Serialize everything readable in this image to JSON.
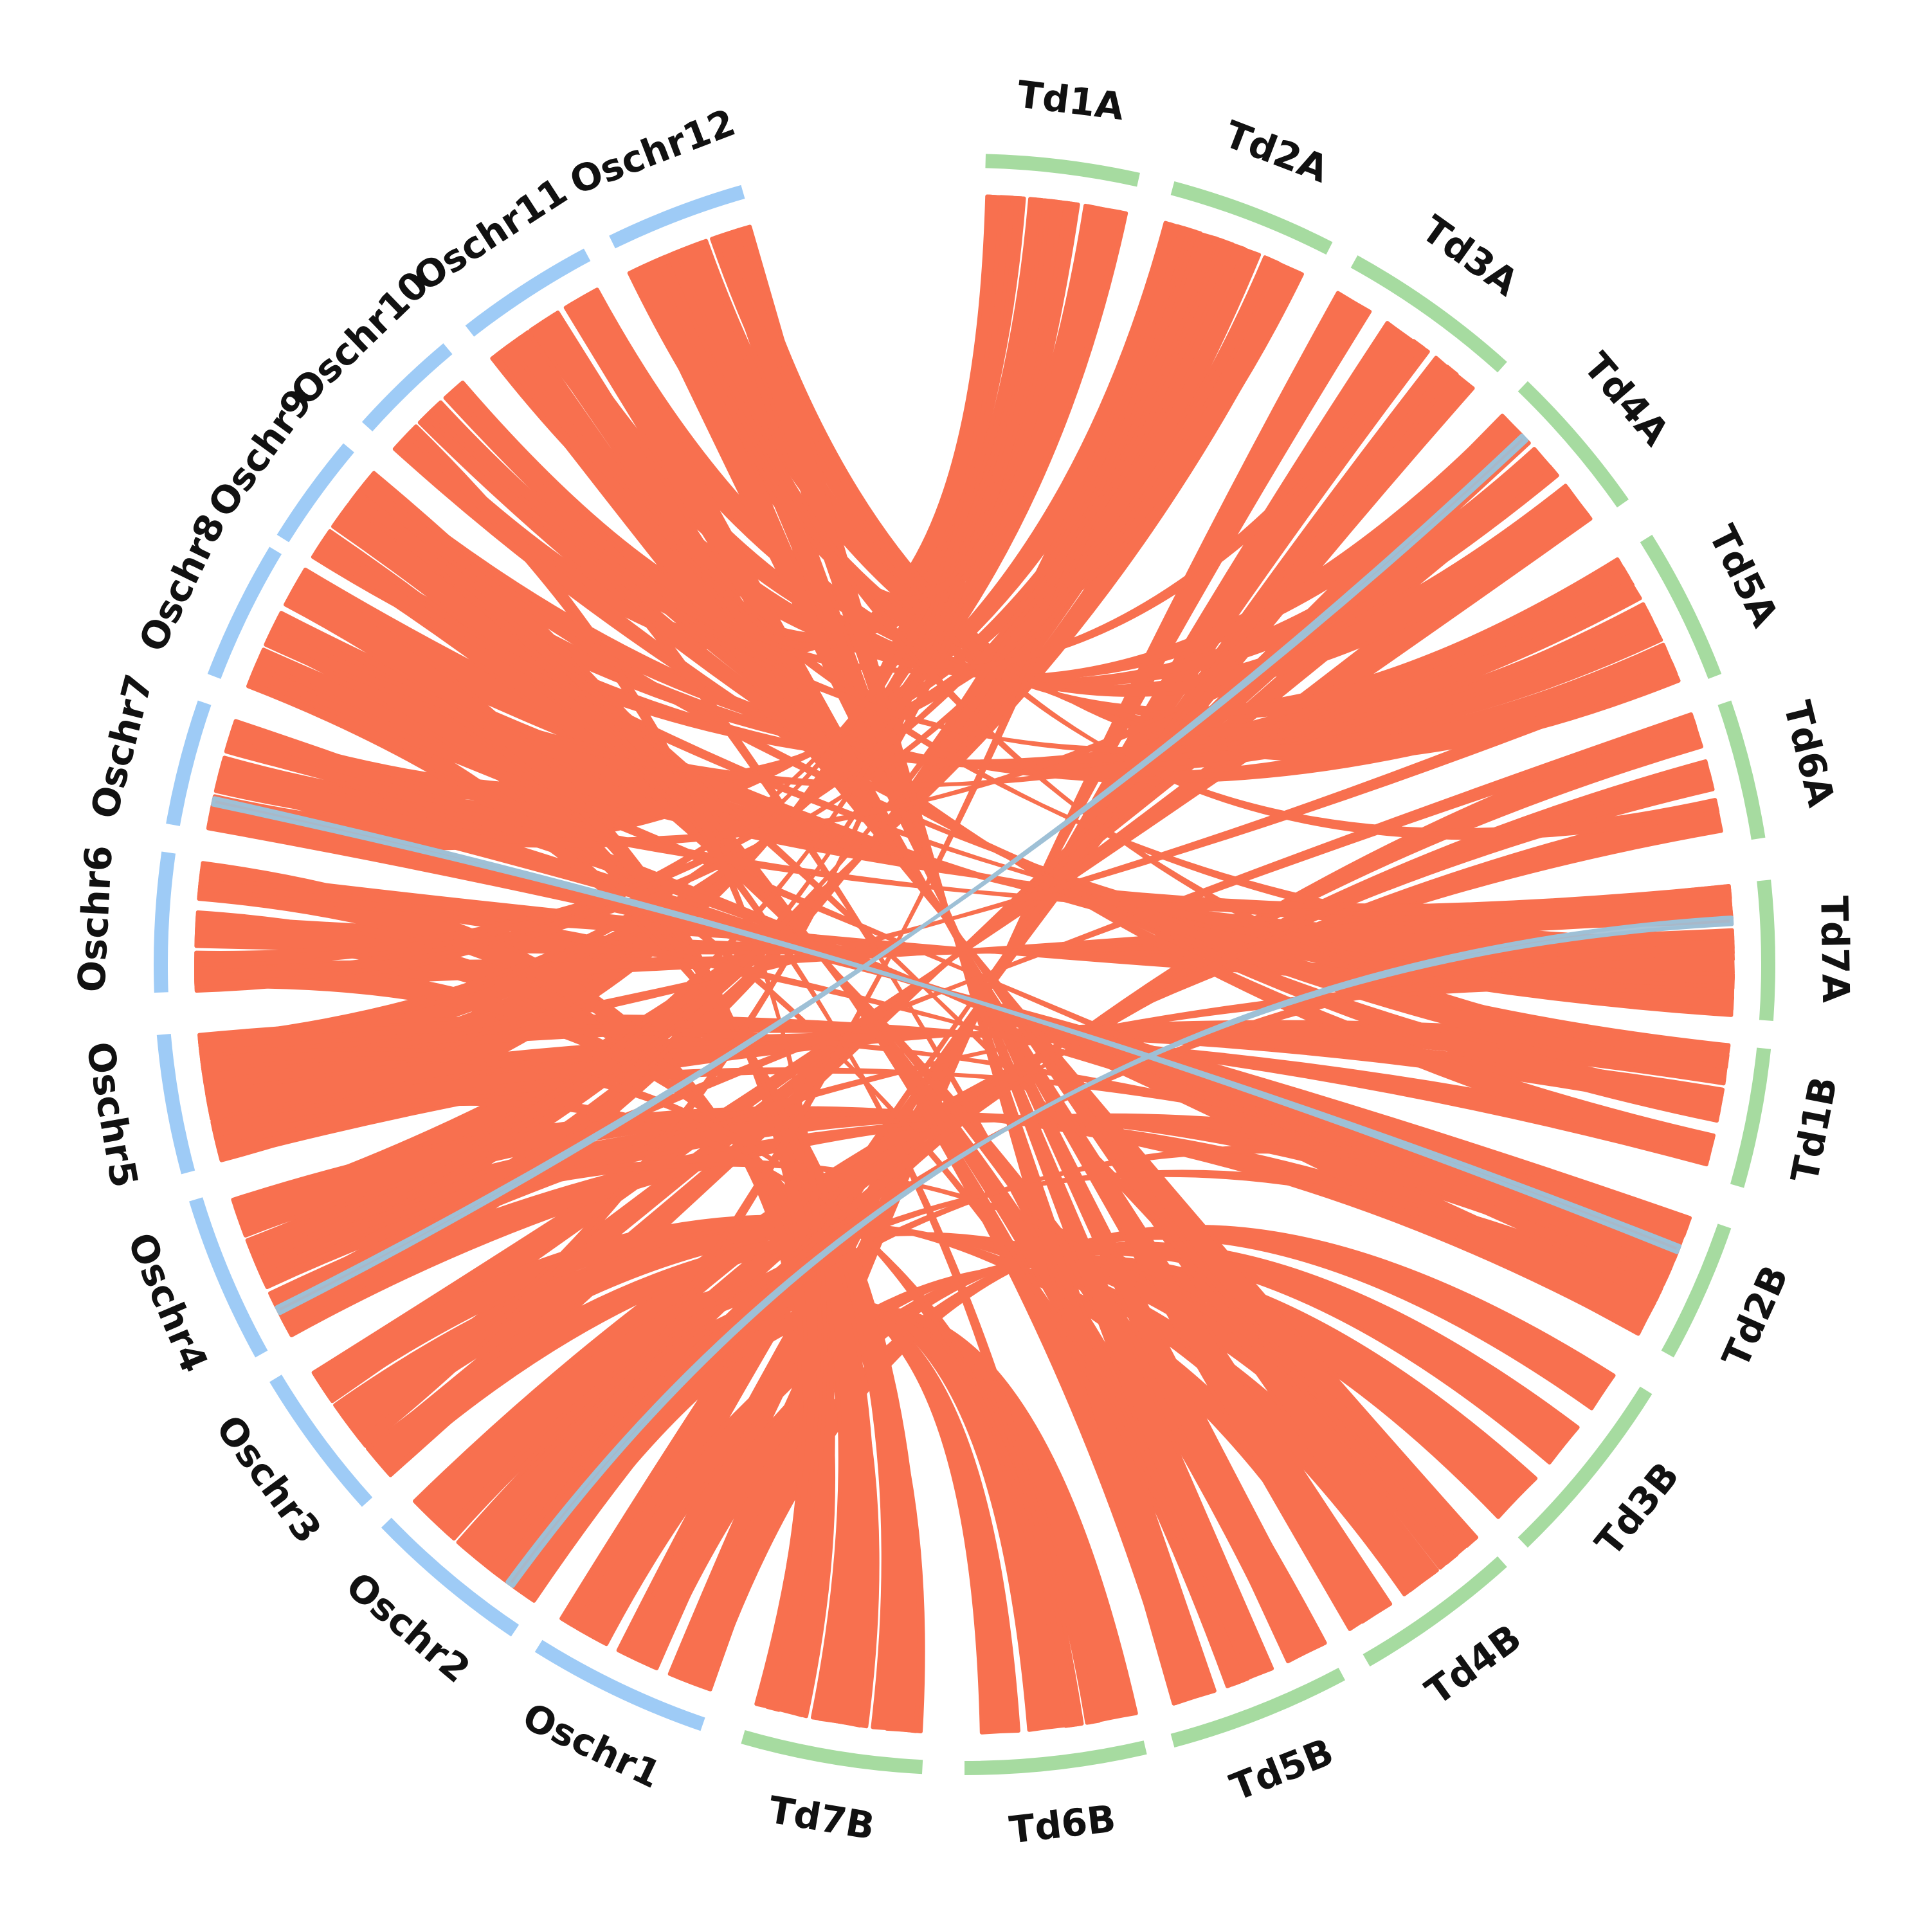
{
  "diagram": {
    "type": "circos-synteny",
    "colors": {
      "rice_segment": "#9ecbf6",
      "wheat_segment": "#a6dba0",
      "link_main": "#f8704f",
      "link_minor": "#9ec0d6"
    },
    "chromosomes": [
      {
        "id": "Oschr1",
        "label": "Oschr1",
        "group": "rice"
      },
      {
        "id": "Oschr2",
        "label": "Oschr2",
        "group": "rice"
      },
      {
        "id": "Oschr3",
        "label": "Oschr3",
        "group": "rice"
      },
      {
        "id": "Oschr4",
        "label": "Oschr4",
        "group": "rice"
      },
      {
        "id": "Oschr5",
        "label": "Oschr5",
        "group": "rice"
      },
      {
        "id": "Oschr6",
        "label": "Oschr6",
        "group": "rice"
      },
      {
        "id": "Oschr7",
        "label": "Oschr7",
        "group": "rice"
      },
      {
        "id": "Oschr8",
        "label": "Oschr8",
        "group": "rice"
      },
      {
        "id": "Oschr9",
        "label": "Oschr9",
        "group": "rice"
      },
      {
        "id": "Oschr10",
        "label": "Oschr10",
        "group": "rice"
      },
      {
        "id": "Oschr11",
        "label": "Oschr11",
        "group": "rice"
      },
      {
        "id": "Oschr12",
        "label": "Oschr12",
        "group": "rice"
      },
      {
        "id": "Td1A",
        "label": "Td1A",
        "group": "wheat"
      },
      {
        "id": "Td2A",
        "label": "Td2A",
        "group": "wheat"
      },
      {
        "id": "Td3A",
        "label": "Td3A",
        "group": "wheat"
      },
      {
        "id": "Td4A",
        "label": "Td4A",
        "group": "wheat"
      },
      {
        "id": "Td5A",
        "label": "Td5A",
        "group": "wheat"
      },
      {
        "id": "Td6A",
        "label": "Td6A",
        "group": "wheat"
      },
      {
        "id": "Td7A",
        "label": "Td7A",
        "group": "wheat"
      },
      {
        "id": "Td1B",
        "label": "Td1B",
        "group": "wheat"
      },
      {
        "id": "Td2B",
        "label": "Td2B",
        "group": "wheat"
      },
      {
        "id": "Td3B",
        "label": "Td3B",
        "group": "wheat"
      },
      {
        "id": "Td4B",
        "label": "Td4B",
        "group": "wheat"
      },
      {
        "id": "Td5B",
        "label": "Td5B",
        "group": "wheat"
      },
      {
        "id": "Td6B",
        "label": "Td6B",
        "group": "wheat"
      },
      {
        "id": "Td7B",
        "label": "Td7B",
        "group": "wheat"
      }
    ],
    "links": [
      {
        "from": "Oschr1",
        "to": "Td3A"
      },
      {
        "from": "Oschr1",
        "to": "Td3B"
      },
      {
        "from": "Oschr2",
        "to": "Td6A"
      },
      {
        "from": "Oschr2",
        "to": "Td6B"
      },
      {
        "from": "Oschr3",
        "to": "Td4A"
      },
      {
        "from": "Oschr3",
        "to": "Td4B"
      },
      {
        "from": "Oschr4",
        "to": "Td2A"
      },
      {
        "from": "Oschr4",
        "to": "Td2B"
      },
      {
        "from": "Oschr5",
        "to": "Td1A"
      },
      {
        "from": "Oschr5",
        "to": "Td1B"
      },
      {
        "from": "Oschr6",
        "to": "Td7A"
      },
      {
        "from": "Oschr6",
        "to": "Td7B"
      },
      {
        "from": "Oschr7",
        "to": "Td2A"
      },
      {
        "from": "Oschr7",
        "to": "Td2B"
      },
      {
        "from": "Oschr8",
        "to": "Td7A"
      },
      {
        "from": "Oschr8",
        "to": "Td7B"
      },
      {
        "from": "Oschr9",
        "to": "Td5A"
      },
      {
        "from": "Oschr9",
        "to": "Td5B"
      },
      {
        "from": "Oschr10",
        "to": "Td1A"
      },
      {
        "from": "Oschr10",
        "to": "Td1B"
      },
      {
        "from": "Oschr11",
        "to": "Td4A"
      },
      {
        "from": "Oschr11",
        "to": "Td4B"
      },
      {
        "from": "Oschr12",
        "to": "Td5A"
      },
      {
        "from": "Oschr12",
        "to": "Td5B"
      }
    ]
  }
}
